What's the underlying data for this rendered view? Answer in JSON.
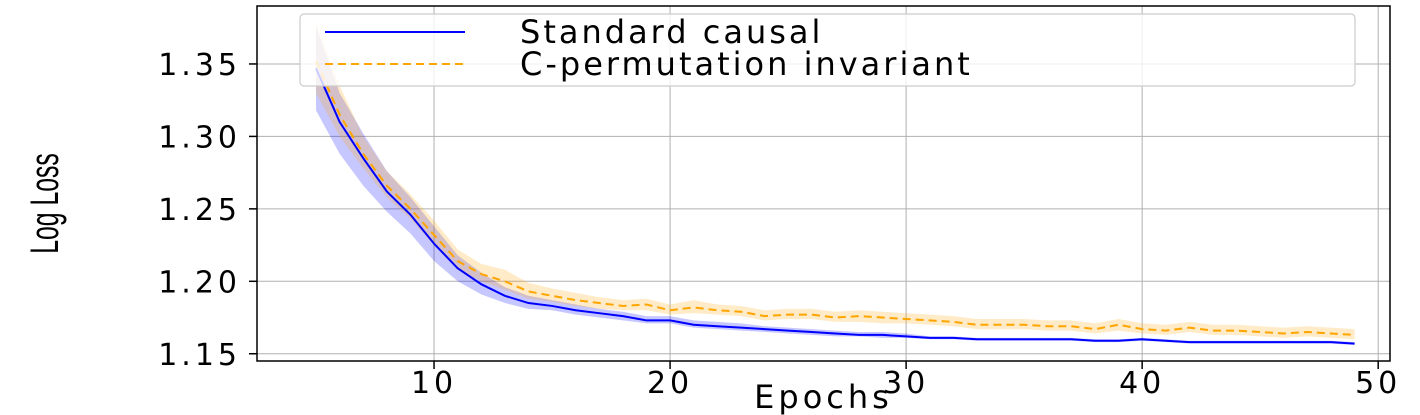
{
  "chart_data": {
    "type": "line",
    "xlabel": "Epochs",
    "ylabel": "Log Loss",
    "xlim": [
      2.5,
      50.5
    ],
    "ylim": [
      1.145,
      1.39
    ],
    "xticks": [
      10,
      20,
      30,
      40,
      50
    ],
    "xtick_labels": [
      "10",
      "20",
      "30",
      "40",
      "50"
    ],
    "yticks": [
      1.15,
      1.2,
      1.25,
      1.3,
      1.35
    ],
    "ytick_labels": [
      "1.15",
      "1.20",
      "1.25",
      "1.30",
      "1.35"
    ],
    "grid": true,
    "legend_position": "top-right",
    "x": [
      5,
      6,
      7,
      8,
      9,
      10,
      11,
      12,
      13,
      14,
      15,
      16,
      17,
      18,
      19,
      20,
      21,
      22,
      23,
      24,
      25,
      26,
      27,
      28,
      29,
      30,
      31,
      32,
      33,
      34,
      35,
      36,
      37,
      38,
      39,
      40,
      41,
      42,
      43,
      44,
      45,
      46,
      47,
      48,
      49
    ],
    "series": [
      {
        "name": "Standard causal",
        "color": "#0000ff",
        "style": "solid",
        "values": [
          1.347,
          1.31,
          1.285,
          1.262,
          1.246,
          1.226,
          1.209,
          1.198,
          1.19,
          1.185,
          1.183,
          1.18,
          1.178,
          1.176,
          1.173,
          1.173,
          1.17,
          1.169,
          1.168,
          1.167,
          1.166,
          1.165,
          1.164,
          1.163,
          1.163,
          1.162,
          1.161,
          1.161,
          1.16,
          1.16,
          1.16,
          1.16,
          1.16,
          1.159,
          1.159,
          1.16,
          1.159,
          1.158,
          1.158,
          1.158,
          1.158,
          1.158,
          1.158,
          1.158,
          1.157
        ],
        "lower": [
          1.318,
          1.288,
          1.266,
          1.248,
          1.233,
          1.214,
          1.2,
          1.191,
          1.185,
          1.181,
          1.18,
          1.177,
          1.175,
          1.173,
          1.171,
          1.171,
          1.168,
          1.167,
          1.166,
          1.165,
          1.164,
          1.163,
          1.162,
          1.162,
          1.161,
          1.161,
          1.16,
          1.16,
          1.159,
          1.159,
          1.159,
          1.159,
          1.159,
          1.158,
          1.158,
          1.159,
          1.158,
          1.157,
          1.157,
          1.157,
          1.157,
          1.157,
          1.157,
          1.157,
          1.156
        ],
        "upper": [
          1.376,
          1.33,
          1.302,
          1.276,
          1.258,
          1.238,
          1.218,
          1.206,
          1.196,
          1.19,
          1.187,
          1.184,
          1.181,
          1.179,
          1.176,
          1.176,
          1.173,
          1.172,
          1.171,
          1.169,
          1.168,
          1.167,
          1.166,
          1.165,
          1.165,
          1.164,
          1.162,
          1.162,
          1.161,
          1.161,
          1.161,
          1.161,
          1.161,
          1.16,
          1.16,
          1.161,
          1.16,
          1.159,
          1.159,
          1.159,
          1.159,
          1.159,
          1.159,
          1.159,
          1.158
        ]
      },
      {
        "name": "C-permutation invariant",
        "color": "#ffa500",
        "style": "dashed",
        "values": [
          1.352,
          1.315,
          1.288,
          1.266,
          1.25,
          1.232,
          1.214,
          1.205,
          1.2,
          1.193,
          1.19,
          1.187,
          1.185,
          1.183,
          1.184,
          1.18,
          1.182,
          1.18,
          1.179,
          1.176,
          1.177,
          1.177,
          1.175,
          1.176,
          1.175,
          1.174,
          1.173,
          1.172,
          1.17,
          1.17,
          1.17,
          1.169,
          1.169,
          1.167,
          1.17,
          1.167,
          1.166,
          1.168,
          1.166,
          1.166,
          1.165,
          1.164,
          1.165,
          1.164,
          1.163
        ],
        "lower": [
          1.33,
          1.3,
          1.278,
          1.258,
          1.243,
          1.225,
          1.208,
          1.2,
          1.194,
          1.188,
          1.186,
          1.183,
          1.181,
          1.18,
          1.18,
          1.177,
          1.178,
          1.177,
          1.176,
          1.173,
          1.174,
          1.174,
          1.172,
          1.172,
          1.171,
          1.171,
          1.17,
          1.169,
          1.167,
          1.167,
          1.167,
          1.166,
          1.166,
          1.164,
          1.166,
          1.164,
          1.163,
          1.165,
          1.163,
          1.163,
          1.162,
          1.161,
          1.162,
          1.161,
          1.16
        ],
        "upper": [
          1.378,
          1.335,
          1.3,
          1.276,
          1.26,
          1.242,
          1.222,
          1.212,
          1.208,
          1.199,
          1.195,
          1.192,
          1.189,
          1.187,
          1.188,
          1.184,
          1.187,
          1.184,
          1.183,
          1.18,
          1.181,
          1.181,
          1.179,
          1.18,
          1.179,
          1.178,
          1.177,
          1.176,
          1.174,
          1.174,
          1.174,
          1.173,
          1.173,
          1.171,
          1.174,
          1.171,
          1.17,
          1.172,
          1.17,
          1.17,
          1.169,
          1.168,
          1.169,
          1.168,
          1.167
        ]
      }
    ]
  }
}
